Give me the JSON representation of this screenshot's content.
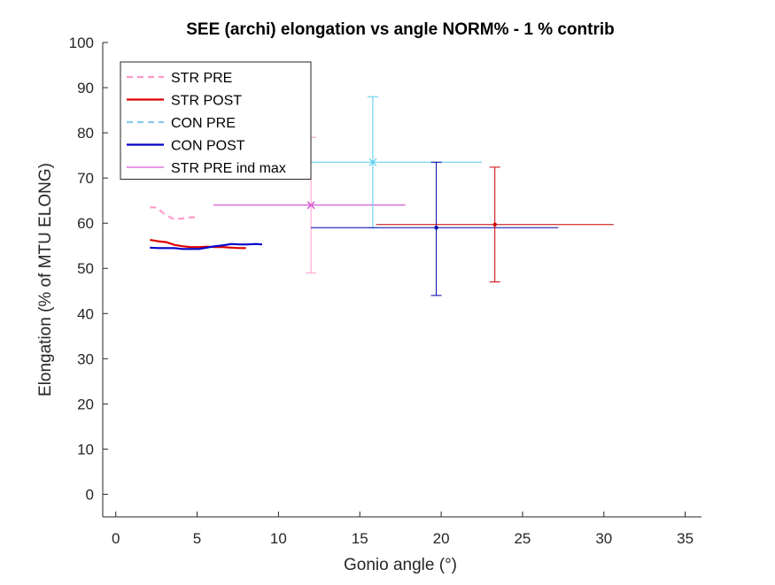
{
  "chart_data": {
    "type": "line",
    "title": "SEE (archi) elongation vs angle NORM% - 1 % contrib",
    "xlabel": "Gonio angle (°)",
    "ylabel": "Elongation (% of MTU ELONG)",
    "xlim": [
      -0.8,
      36
    ],
    "ylim": [
      -5,
      100
    ],
    "xticks": [
      0,
      5,
      10,
      15,
      20,
      25,
      30,
      35
    ],
    "xtick_labels": [
      "0",
      "5",
      "10",
      "15",
      "20",
      "25",
      "30",
      "35"
    ],
    "yticks": [
      0,
      10,
      20,
      30,
      40,
      50,
      60,
      70,
      80,
      90,
      100
    ],
    "ytick_labels": [
      "0",
      "10",
      "20",
      "30",
      "40",
      "50",
      "60",
      "70",
      "80",
      "90",
      "100"
    ],
    "grid": false,
    "legend_position": "top-left",
    "series": [
      {
        "name": "STR PRE",
        "color": "#ff99cc",
        "dash": "dashed",
        "x": [
          2.1,
          2.5,
          3.0,
          3.5,
          4.0,
          4.5,
          5.0
        ],
        "y": [
          63.5,
          63.5,
          62.0,
          61.0,
          61.0,
          61.3,
          61.3
        ]
      },
      {
        "name": "STR POST",
        "color": "#dd0000",
        "dash": "solid",
        "x": [
          2.1,
          2.6,
          3.1,
          3.6,
          4.1,
          4.6,
          5.1,
          5.6,
          6.1,
          6.6,
          7.1,
          7.6,
          8.0
        ],
        "y": [
          56.3,
          56.0,
          55.8,
          55.2,
          54.9,
          54.7,
          54.7,
          54.8,
          54.7,
          54.7,
          54.6,
          54.5,
          54.5
        ]
      },
      {
        "name": "CON PRE",
        "color": "#88ccee",
        "dash": "dashed",
        "x": [],
        "y": []
      },
      {
        "name": "CON POST",
        "color": "#0000cc",
        "dash": "solid",
        "x": [
          2.1,
          2.6,
          3.1,
          3.6,
          4.1,
          4.6,
          5.1,
          5.6,
          6.1,
          6.6,
          7.1,
          7.6,
          8.1,
          8.6,
          9.0
        ],
        "y": [
          54.6,
          54.5,
          54.5,
          54.5,
          54.3,
          54.3,
          54.3,
          54.6,
          54.9,
          55.1,
          55.4,
          55.3,
          55.3,
          55.4,
          55.3
        ]
      }
    ],
    "error_markers": [
      {
        "name": "STR PRE ind max",
        "color": "#cc33cc",
        "x": 12.0,
        "y": 64.0,
        "xmin": 6.0,
        "xmax": 17.8,
        "ymin": null,
        "ymax": null,
        "marker": "x"
      },
      {
        "name": "STR PRE",
        "color": "#ff99cc",
        "x": 12.0,
        "y": 64.0,
        "xmin": null,
        "xmax": null,
        "ymin": 49.0,
        "ymax": 79.0,
        "marker": "none"
      },
      {
        "name": "CON PRE",
        "color": "#55ccee",
        "x": 15.8,
        "y": 73.5,
        "xmin": 9.0,
        "xmax": 22.5,
        "ymin": 59.0,
        "ymax": 88.0,
        "marker": "x"
      },
      {
        "name": "CON POST",
        "color": "#0000aa",
        "x": 19.7,
        "y": 59.0,
        "xmin": 12.0,
        "xmax": 27.2,
        "ymin": 44.0,
        "ymax": 73.5,
        "marker": "dot"
      },
      {
        "name": "STR POST",
        "color": "#cc0000",
        "x": 23.3,
        "y": 59.7,
        "xmin": 16.0,
        "xmax": 30.6,
        "ymin": 47.0,
        "ymax": 72.4,
        "marker": "dot"
      }
    ],
    "legend": [
      {
        "label": "STR PRE",
        "color": "#ff99cc",
        "dash": "dashed"
      },
      {
        "label": "STR POST",
        "color": "#dd0000",
        "dash": "solid"
      },
      {
        "label": "CON PRE",
        "color": "#88ccee",
        "dash": "dashed"
      },
      {
        "label": "CON POST",
        "color": "#0000cc",
        "dash": "solid"
      },
      {
        "label": "STR PRE ind max",
        "color": "#cc33cc",
        "dash": "thin"
      }
    ]
  }
}
